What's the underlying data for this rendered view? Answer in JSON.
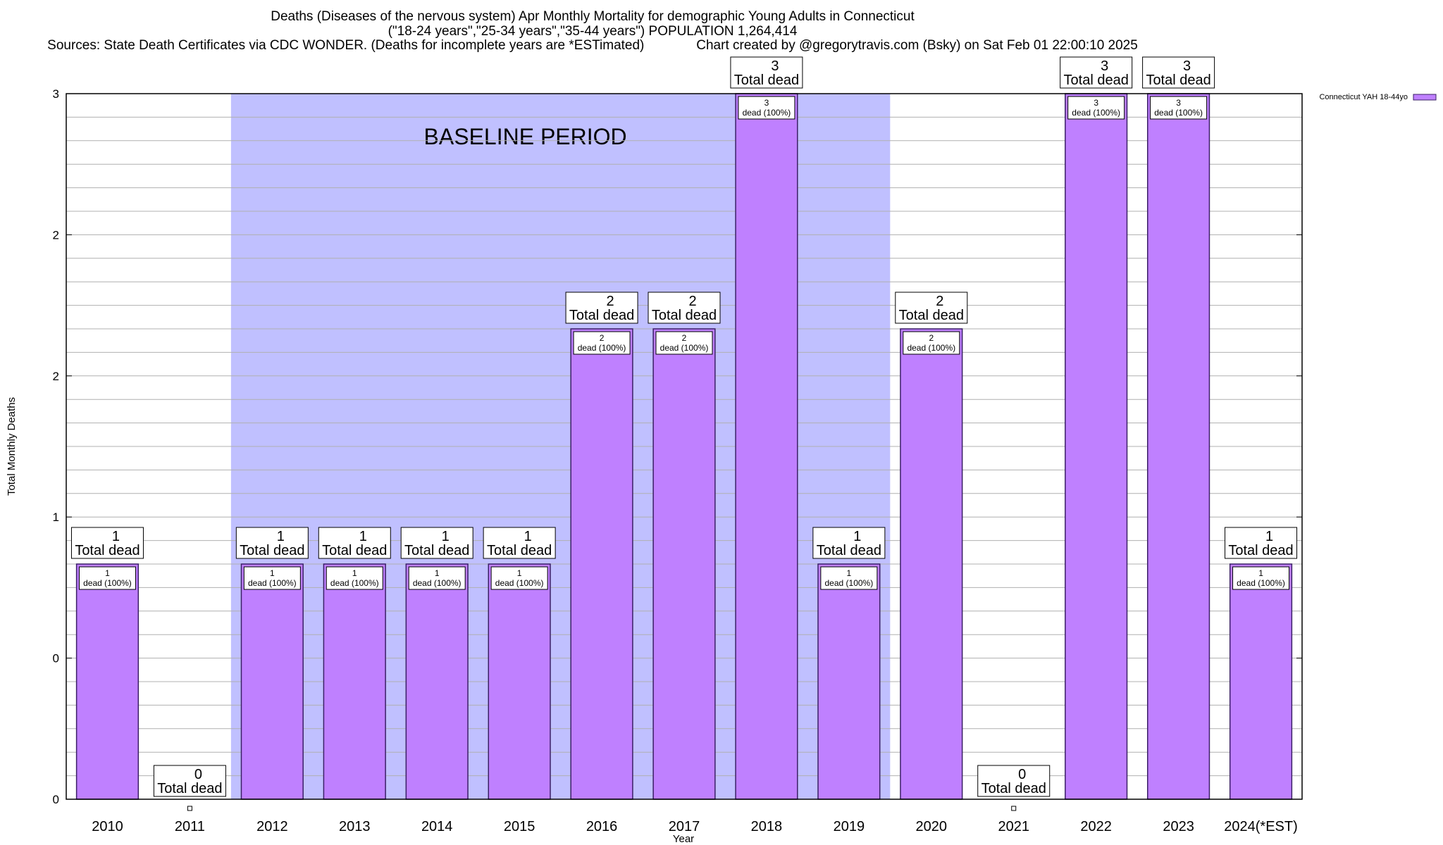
{
  "title": {
    "line1": "Deaths (Diseases of the nervous system) Apr Monthly Mortality for demographic Young Adults in Connecticut",
    "line2": "(\"18-24 years\",\"25-34 years\",\"35-44 years\") POPULATION 1,264,414",
    "line3": "Sources: State Death Certificates via CDC WONDER. (Deaths for incomplete years are *ESTimated)              Chart created by @gregorytravis.com (Bsky) on Sat Feb 01 22:00:10 2025"
  },
  "colors": {
    "bar_fill": "#bf80ff",
    "bar_edge": "#3b1f66",
    "baseline_fill": "#c0c0ff",
    "grid": "#b0b0b0"
  },
  "chart_data": {
    "type": "bar",
    "xlabel": "Year",
    "ylabel": "Total Monthly Deaths",
    "ylim": [
      0,
      3
    ],
    "y_tick_labels": [
      "0",
      "0",
      "1",
      "2",
      "2",
      "3"
    ],
    "grid": true,
    "legend": {
      "placement": "top-right",
      "entries": [
        "Connecticut YAH 18-44yo"
      ]
    },
    "baseline_label": "BASELINE PERIOD",
    "baseline_range": [
      "2012",
      "2019"
    ],
    "categories": [
      "2010",
      "2011",
      "2012",
      "2013",
      "2014",
      "2015",
      "2016",
      "2017",
      "2018",
      "2019",
      "2020",
      "2021",
      "2022",
      "2023",
      "2024(*EST)"
    ],
    "series": [
      {
        "name": "Connecticut YAH 18-44yo",
        "values": [
          1,
          0,
          1,
          1,
          1,
          1,
          2,
          2,
          3,
          1,
          2,
          0,
          3,
          3,
          1
        ]
      }
    ],
    "total_label_suffix": "Total dead",
    "inner_label_suffix": "dead (100%)"
  }
}
